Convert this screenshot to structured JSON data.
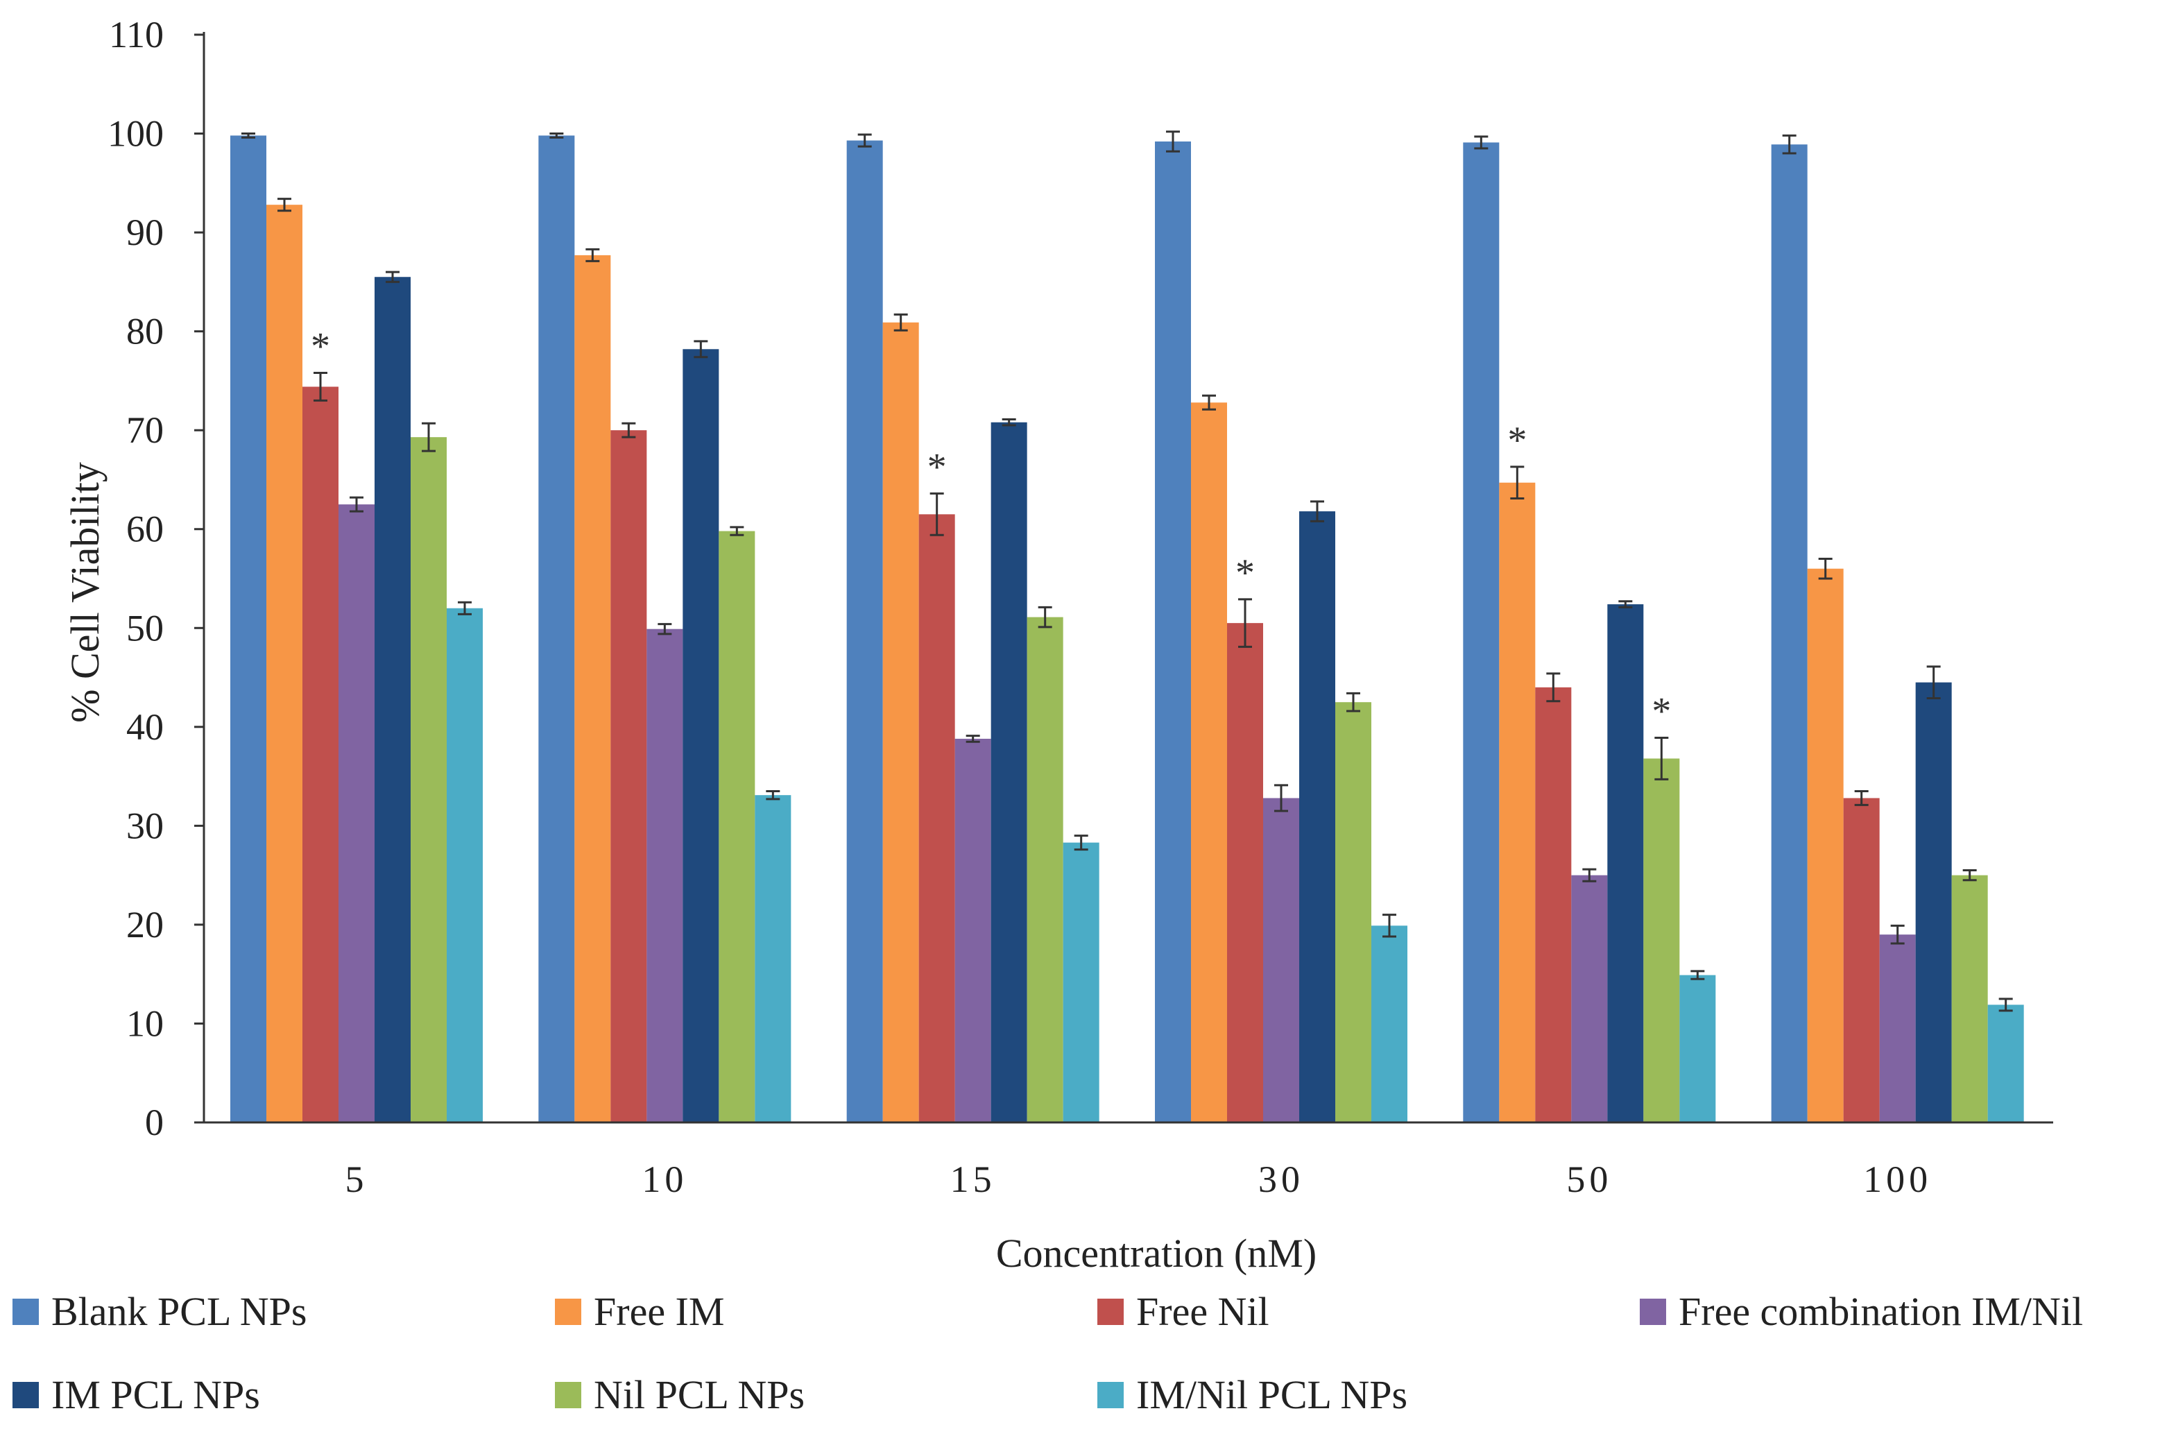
{
  "chart_data": {
    "type": "bar",
    "title": "",
    "xlabel": "Concentration (nM)",
    "ylabel": "% Cell Viability",
    "ylim": [
      0,
      110
    ],
    "yticks": [
      0,
      10,
      20,
      30,
      40,
      50,
      60,
      70,
      80,
      90,
      100,
      110
    ],
    "categories": [
      "5",
      "10",
      "15",
      "30",
      "50",
      "100"
    ],
    "series": [
      {
        "name": "Blank PCL NPs",
        "color": "#4F81BD",
        "values": [
          99.8,
          99.8,
          99.3,
          99.2,
          99.1,
          98.9
        ],
        "errors": [
          0.2,
          0.2,
          0.6,
          1.0,
          0.6,
          0.9
        ]
      },
      {
        "name": "Free IM",
        "color": "#F79646",
        "values": [
          92.8,
          87.7,
          80.9,
          72.8,
          64.7,
          56.0
        ],
        "errors": [
          0.6,
          0.6,
          0.8,
          0.7,
          1.6,
          1.0
        ]
      },
      {
        "name": "Free Nil",
        "color": "#C0504D",
        "values": [
          74.4,
          70.0,
          61.5,
          50.5,
          44.0,
          32.8
        ],
        "errors": [
          1.4,
          0.7,
          2.1,
          2.4,
          1.4,
          0.7
        ]
      },
      {
        "name": "Free combination IM/Nil",
        "color": "#8064A2",
        "values": [
          62.5,
          49.9,
          38.8,
          32.8,
          25.0,
          19.0
        ],
        "errors": [
          0.7,
          0.5,
          0.3,
          1.3,
          0.6,
          0.9
        ]
      },
      {
        "name": "IM PCL NPs",
        "color": "#1F497D",
        "values": [
          85.5,
          78.2,
          70.8,
          61.8,
          52.4,
          44.5
        ],
        "errors": [
          0.5,
          0.8,
          0.3,
          1.0,
          0.3,
          1.6
        ]
      },
      {
        "name": "Nil PCL NPs",
        "color": "#9BBB59",
        "values": [
          69.3,
          59.8,
          51.1,
          42.5,
          36.8,
          25.0
        ],
        "errors": [
          1.4,
          0.4,
          1.0,
          0.9,
          2.1,
          0.5
        ]
      },
      {
        "name": "IM/Nil PCL NPs",
        "color": "#4BACC6",
        "values": [
          52.0,
          33.1,
          28.3,
          19.9,
          14.9,
          11.9
        ],
        "errors": [
          0.6,
          0.4,
          0.7,
          1.1,
          0.4,
          0.6
        ]
      }
    ],
    "annotations": [
      {
        "text": "*",
        "category": "5",
        "series": "Free Nil"
      },
      {
        "text": "*",
        "category": "15",
        "series": "Free Nil"
      },
      {
        "text": "*",
        "category": "30",
        "series": "Free Nil"
      },
      {
        "text": "*",
        "category": "50",
        "series": "Free IM"
      },
      {
        "text": "*",
        "category": "50",
        "series": "Nil PCL NPs"
      }
    ],
    "grid": false,
    "legend_position": "bottom"
  }
}
